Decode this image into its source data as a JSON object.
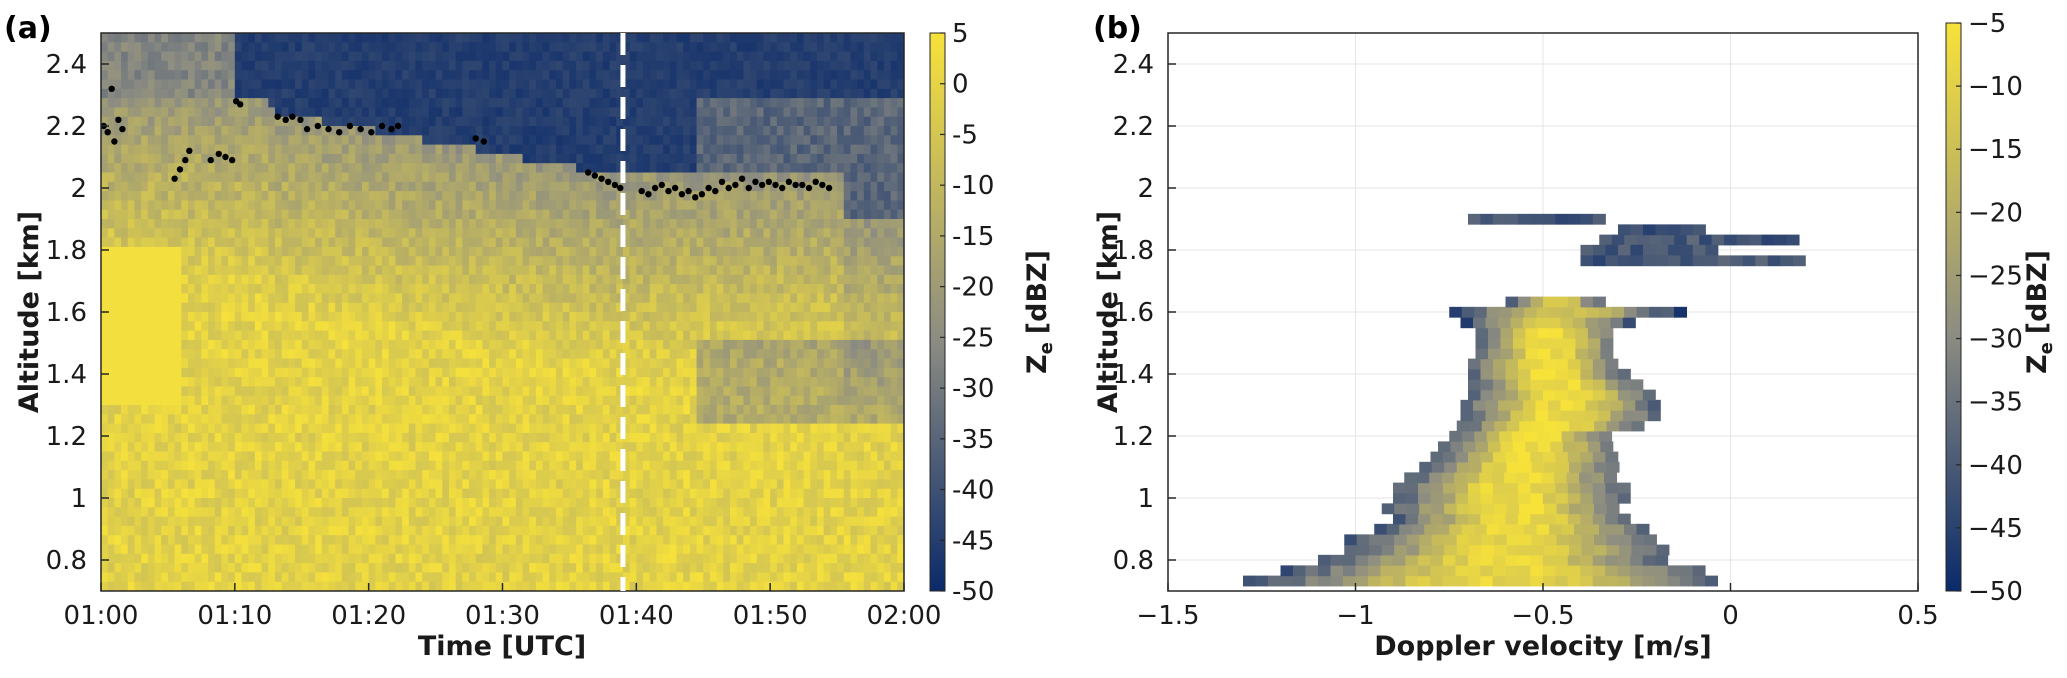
{
  "colors": {
    "low": "#0a2a6a",
    "mid": "#8c8c82",
    "high": "#f7e23a",
    "marker": "#000000",
    "dashed_line": "#ffffff",
    "grid": "#e6e6e6",
    "axis": "#262626"
  },
  "chart_data": [
    {
      "panel_label": "(a)",
      "type": "heatmap",
      "xlabel": "Time [UTC]",
      "ylabel": "Altitude [km]",
      "xticks": [
        "01:00",
        "01:10",
        "01:20",
        "01:30",
        "01:40",
        "01:50",
        "02:00"
      ],
      "xlim_minutes": [
        0,
        60
      ],
      "yticks": [
        "0.8",
        "1",
        "1.2",
        "1.4",
        "1.6",
        "1.8",
        "2",
        "2.2",
        "2.4"
      ],
      "ylim": [
        0.7,
        2.5
      ],
      "colorbar": {
        "label": "Z",
        "label_sub": "e",
        "label_unit": "[dBZ]",
        "range": [
          -50,
          5
        ],
        "ticks": [
          "5",
          "0",
          "-5",
          "-10",
          "-15",
          "-20",
          "-25",
          "-30",
          "-35",
          "-40",
          "-45",
          "-50"
        ]
      },
      "dashed_line_x_minutes": 39,
      "cloud_top_markers": {
        "x_minutes": [
          0.2,
          0.5,
          0.8,
          1.0,
          1.3,
          1.6,
          5.5,
          5.9,
          6.3,
          6.6,
          8.2,
          8.8,
          9.3,
          9.8,
          10.1,
          10.4,
          13.2,
          13.8,
          14.3,
          14.9,
          15.4,
          16.2,
          17.0,
          17.8,
          18.6,
          19.4,
          20.2,
          21.0,
          21.7,
          22.2,
          28.0,
          28.6,
          36.4,
          36.9,
          37.4,
          37.9,
          38.4,
          38.8,
          40.4,
          40.9,
          41.4,
          41.9,
          42.4,
          42.9,
          43.4,
          43.9,
          44.4,
          44.9,
          45.4,
          45.9,
          46.4,
          46.9,
          47.4,
          47.9,
          48.4,
          48.9,
          49.4,
          49.9,
          50.4,
          50.9,
          51.4,
          51.9,
          52.4,
          52.9,
          53.4,
          53.9,
          54.4
        ],
        "altitude_km": [
          2.2,
          2.18,
          2.32,
          2.15,
          2.22,
          2.19,
          2.03,
          2.06,
          2.09,
          2.12,
          2.09,
          2.11,
          2.1,
          2.09,
          2.28,
          2.27,
          2.23,
          2.22,
          2.23,
          2.22,
          2.19,
          2.2,
          2.19,
          2.18,
          2.2,
          2.19,
          2.18,
          2.2,
          2.19,
          2.2,
          2.16,
          2.15,
          2.05,
          2.04,
          2.03,
          2.02,
          2.01,
          2.0,
          1.99,
          1.98,
          2.0,
          2.01,
          1.99,
          2.0,
          1.98,
          1.99,
          1.97,
          1.98,
          2.0,
          1.99,
          2.02,
          2.0,
          2.01,
          2.03,
          2.0,
          2.02,
          2.01,
          2.02,
          2.01,
          2.0,
          2.02,
          2.01,
          2.01,
          2.0,
          2.02,
          2.01,
          2.0
        ]
      },
      "reflectivity_profile_note": null
    },
    {
      "panel_label": "(b)",
      "type": "heatmap",
      "xlabel": "Doppler velocity [m/s]",
      "ylabel": "Altitude [km]",
      "xticks": [
        "-1.5",
        "-1",
        "-0.5",
        "0",
        "0.5"
      ],
      "xlim": [
        -1.5,
        0.5
      ],
      "yticks": [
        "0.8",
        "1",
        "1.2",
        "1.4",
        "1.6",
        "1.8",
        "2",
        "2.2",
        "2.4"
      ],
      "ylim": [
        0.7,
        2.5
      ],
      "grid": true,
      "colorbar": {
        "label": "Z",
        "label_sub": "e",
        "label_unit": "[dBZ]",
        "range": [
          -50,
          -5
        ],
        "ticks": [
          "-5",
          "-10",
          "-15",
          "-20",
          "-25",
          "-30",
          "-35",
          "-40",
          "-45",
          "-50"
        ]
      }
    }
  ]
}
